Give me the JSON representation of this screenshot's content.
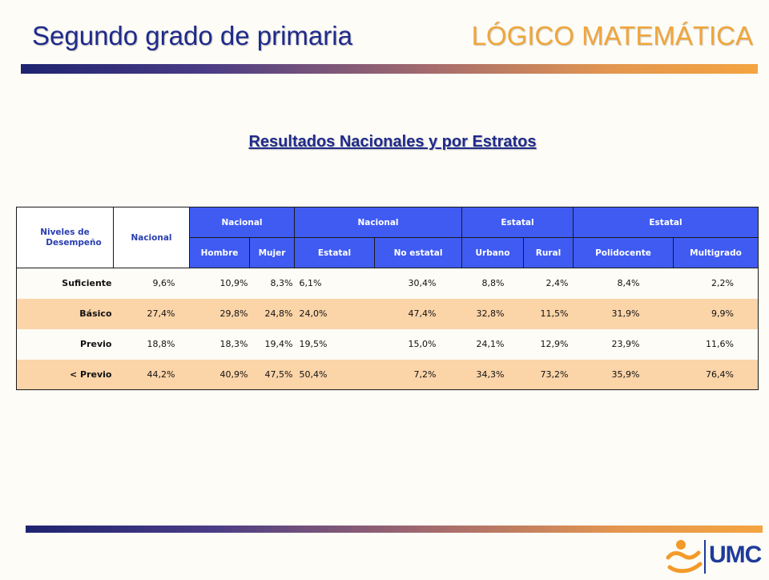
{
  "header": {
    "title_left": "Segundo grado de primaria",
    "title_right": "LÓGICO MATEMÁTICA"
  },
  "subtitle": "Resultados Nacionales y por Estratos",
  "table": {
    "corner_label_1": "Niveles de",
    "corner_label_2": "Desempeño",
    "nacional_label": "Nacional",
    "group_headers": [
      "Nacional",
      "Nacional",
      "Estatal",
      "Estatal"
    ],
    "sub_headers": [
      "Hombre",
      "Mujer",
      "Estatal",
      "No estatal",
      "Urbano",
      "Rural",
      "Polidocente",
      "Multigrado"
    ],
    "rows": [
      {
        "label": "Suficiente",
        "values": [
          "9,6%",
          "10,9%",
          "8,3%",
          "6,1%",
          "30,4%",
          "8,8%",
          "2,4%",
          "8,4%",
          "2,2%"
        ]
      },
      {
        "label": "Básico",
        "values": [
          "27,4%",
          "29,8%",
          "24,8%",
          "24,0%",
          "47,4%",
          "32,8%",
          "11,5%",
          "31,9%",
          "9,9%"
        ]
      },
      {
        "label": "Previo",
        "values": [
          "18,8%",
          "18,3%",
          "19,4%",
          "19,5%",
          "15,0%",
          "24,1%",
          "12,9%",
          "23,9%",
          "11,6%"
        ]
      },
      {
        "label": "< Previo",
        "values": [
          "44,2%",
          "40,9%",
          "47,5%",
          "50,4%",
          "7,2%",
          "34,3%",
          "73,2%",
          "35,9%",
          "76,4%"
        ]
      }
    ]
  },
  "logo": {
    "text": "UMC"
  },
  "colors": {
    "title_blue": "#1f2a8c",
    "title_orange": "#f0a63a",
    "header_blue": "#3f5bf2",
    "row_alt": "#fbd4a8"
  }
}
